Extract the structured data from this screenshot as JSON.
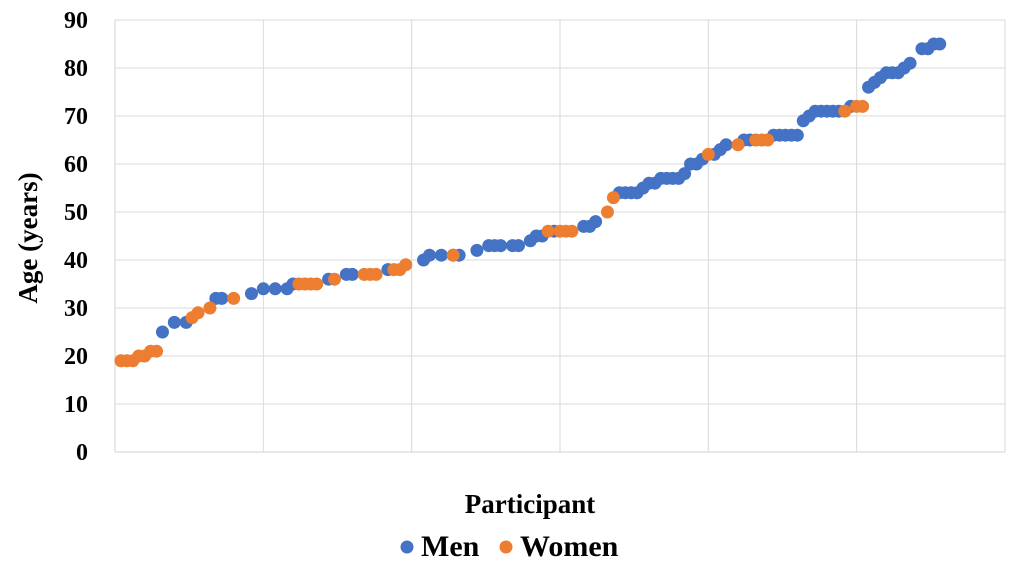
{
  "chart_data": {
    "type": "scatter",
    "title": "",
    "xlabel": "Participant",
    "ylabel": "Age (years)",
    "xlim": [
      0,
      150
    ],
    "ylim": [
      0,
      90
    ],
    "yticks": [
      "0",
      "10",
      "20",
      "30",
      "40",
      "50",
      "60",
      "70",
      "80",
      "90"
    ],
    "grid": "vertical and horizontal",
    "legend_position": "bottom",
    "series": [
      {
        "name": "Men",
        "color": "#4472C4",
        "points": [
          [
            8,
            25
          ],
          [
            10,
            27
          ],
          [
            12,
            27
          ],
          [
            17,
            32
          ],
          [
            18,
            32
          ],
          [
            23,
            33
          ],
          [
            25,
            34
          ],
          [
            27,
            34
          ],
          [
            29,
            34
          ],
          [
            30,
            35
          ],
          [
            36,
            36
          ],
          [
            39,
            37
          ],
          [
            40,
            37
          ],
          [
            46,
            38
          ],
          [
            52,
            40
          ],
          [
            53,
            41
          ],
          [
            55,
            41
          ],
          [
            57,
            41
          ],
          [
            58,
            41
          ],
          [
            61,
            42
          ],
          [
            63,
            43
          ],
          [
            64,
            43
          ],
          [
            65,
            43
          ],
          [
            67,
            43
          ],
          [
            68,
            43
          ],
          [
            70,
            44
          ],
          [
            71,
            45
          ],
          [
            72,
            45
          ],
          [
            74,
            46
          ],
          [
            79,
            47
          ],
          [
            80,
            47
          ],
          [
            81,
            48
          ],
          [
            85,
            54
          ],
          [
            86,
            54
          ],
          [
            87,
            54
          ],
          [
            88,
            54
          ],
          [
            89,
            55
          ],
          [
            90,
            56
          ],
          [
            91,
            56
          ],
          [
            92,
            57
          ],
          [
            93,
            57
          ],
          [
            94,
            57
          ],
          [
            95,
            57
          ],
          [
            96,
            58
          ],
          [
            97,
            60
          ],
          [
            98,
            60
          ],
          [
            99,
            61
          ],
          [
            101,
            62
          ],
          [
            102,
            63
          ],
          [
            103,
            64
          ],
          [
            106,
            65
          ],
          [
            107,
            65
          ],
          [
            111,
            66
          ],
          [
            112,
            66
          ],
          [
            113,
            66
          ],
          [
            114,
            66
          ],
          [
            115,
            66
          ],
          [
            116,
            69
          ],
          [
            117,
            70
          ],
          [
            118,
            71
          ],
          [
            119,
            71
          ],
          [
            120,
            71
          ],
          [
            121,
            71
          ],
          [
            122,
            71
          ],
          [
            124,
            72
          ],
          [
            127,
            76
          ],
          [
            128,
            77
          ],
          [
            129,
            78
          ],
          [
            130,
            79
          ],
          [
            131,
            79
          ],
          [
            132,
            79
          ],
          [
            133,
            80
          ],
          [
            134,
            81
          ],
          [
            136,
            84
          ],
          [
            137,
            84
          ],
          [
            138,
            85
          ],
          [
            139,
            85
          ]
        ]
      },
      {
        "name": "Women",
        "color": "#ED7D31",
        "points": [
          [
            1,
            19
          ],
          [
            2,
            19
          ],
          [
            3,
            19
          ],
          [
            4,
            20
          ],
          [
            5,
            20
          ],
          [
            6,
            21
          ],
          [
            7,
            21
          ],
          [
            13,
            28
          ],
          [
            14,
            29
          ],
          [
            16,
            30
          ],
          [
            20,
            32
          ],
          [
            31,
            35
          ],
          [
            32,
            35
          ],
          [
            33,
            35
          ],
          [
            34,
            35
          ],
          [
            37,
            36
          ],
          [
            42,
            37
          ],
          [
            43,
            37
          ],
          [
            44,
            37
          ],
          [
            47,
            38
          ],
          [
            48,
            38
          ],
          [
            49,
            39
          ],
          [
            57,
            41
          ],
          [
            73,
            46
          ],
          [
            75,
            46
          ],
          [
            76,
            46
          ],
          [
            77,
            46
          ],
          [
            83,
            50
          ],
          [
            84,
            53
          ],
          [
            100,
            62
          ],
          [
            105,
            64
          ],
          [
            108,
            65
          ],
          [
            109,
            65
          ],
          [
            110,
            65
          ],
          [
            123,
            71
          ],
          [
            125,
            72
          ],
          [
            126,
            72
          ]
        ]
      }
    ]
  }
}
